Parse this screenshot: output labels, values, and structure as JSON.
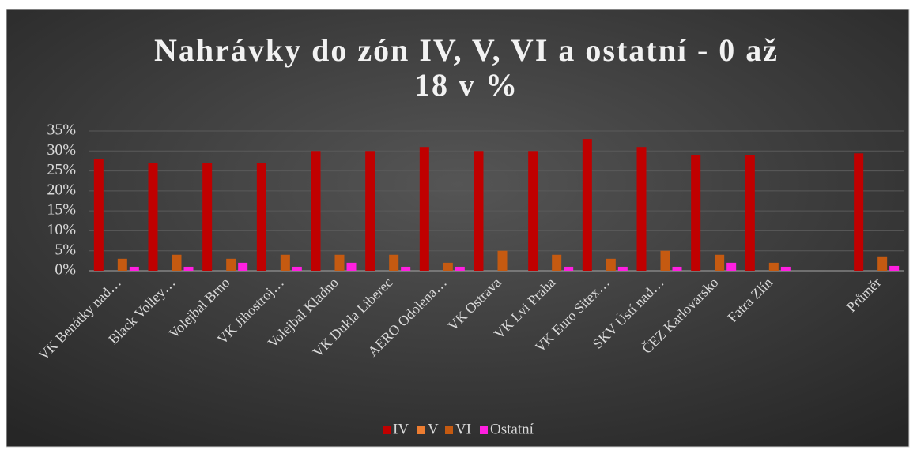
{
  "chart_data": {
    "type": "bar",
    "title": [
      "Nahrávky do zón IV, V, VI a ostatní - 0 až",
      "18 v %"
    ],
    "categories": [
      "VK Benátky nad…",
      "Black Volley…",
      "Volejbal Brno",
      "VK Jihostroj…",
      "Volejbal Kladno",
      "VK Dukla Liberec",
      "AERO Odolena…",
      "VK Ostrava",
      "VK Lvi Praha",
      "VK Euro Sitex…",
      "SKV Ústí nad…",
      "ČEZ Karlovarsko",
      "Fatra Zlín",
      null,
      "Průměr"
    ],
    "series": [
      {
        "name": "IV",
        "color": "#c00000",
        "values": [
          28,
          27,
          27,
          27,
          30,
          30,
          31,
          30,
          30,
          33,
          31,
          29,
          29,
          null,
          29.4
        ]
      },
      {
        "name": "V",
        "color": "#ed7d31",
        "values": [
          0,
          0,
          0,
          0,
          0,
          0,
          0,
          0,
          0,
          0,
          0,
          0,
          0,
          null,
          0
        ]
      },
      {
        "name": "VI",
        "color": "#c55a11",
        "values": [
          3,
          4,
          3,
          4,
          4,
          4,
          2,
          5,
          4,
          3,
          5,
          4,
          2,
          null,
          3.6
        ]
      },
      {
        "name": "Ostatní",
        "color": "#ff1fe0",
        "values": [
          1,
          1,
          2,
          1,
          2,
          1,
          1,
          0,
          1,
          1,
          1,
          2,
          1,
          null,
          1.2
        ]
      }
    ],
    "ylim": [
      0,
      35
    ],
    "yticks": [
      {
        "value": 0,
        "label": "0%"
      },
      {
        "value": 5,
        "label": "5%"
      },
      {
        "value": 10,
        "label": "10%"
      },
      {
        "value": 15,
        "label": "15%"
      },
      {
        "value": 20,
        "label": "20%"
      },
      {
        "value": 25,
        "label": "25%"
      },
      {
        "value": 30,
        "label": "30%"
      },
      {
        "value": 35,
        "label": "35%"
      }
    ],
    "grid": true,
    "legend": "bottom"
  }
}
